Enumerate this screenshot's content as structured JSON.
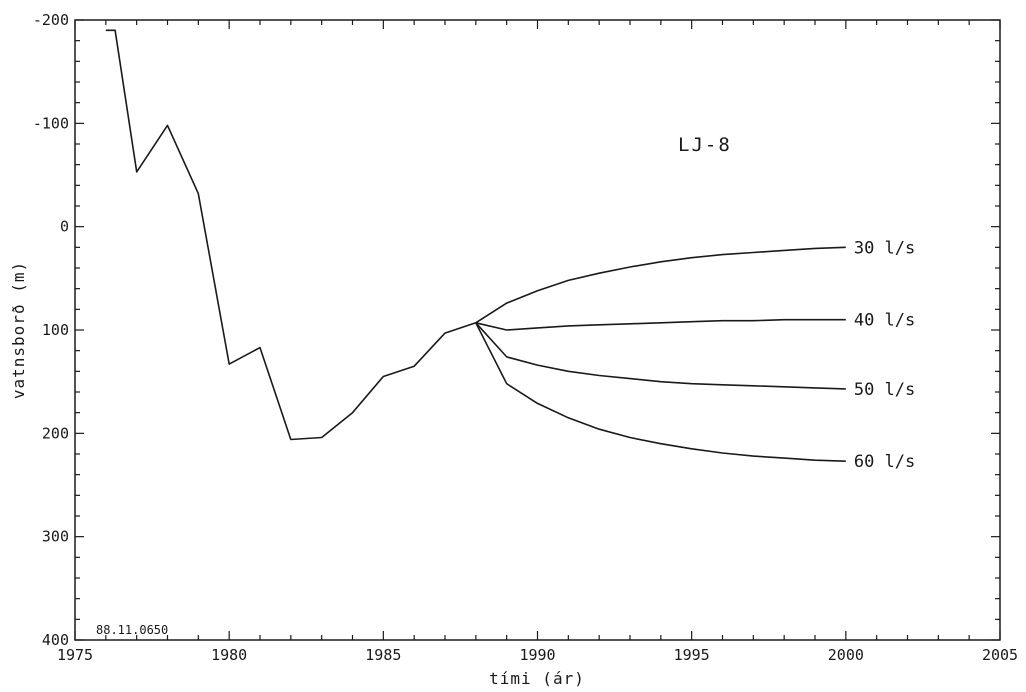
{
  "chart_data": {
    "type": "line",
    "title": "",
    "annotation": "LJ-8",
    "code_label": "88.11.0650",
    "xlabel": "tími (ár)",
    "ylabel": "vatnsborð (m)",
    "xlim": [
      1975,
      2005
    ],
    "ylim": [
      -200,
      400
    ],
    "y_inverted": true,
    "grid": false,
    "x_ticks": [
      1975,
      1980,
      1985,
      1990,
      1995,
      2000,
      2005
    ],
    "y_ticks": [
      -200,
      -100,
      0,
      100,
      200,
      300,
      400
    ],
    "history": {
      "x": [
        1976,
        1976.3,
        1977,
        1978,
        1979,
        1980,
        1981,
        1982,
        1983,
        1984,
        1985,
        1986,
        1987,
        1988
      ],
      "y": [
        -190,
        -190,
        -53,
        -98,
        -32,
        133,
        117,
        206,
        204,
        180,
        145,
        135,
        103,
        93
      ]
    },
    "series": [
      {
        "name": "30 l/s",
        "x": [
          1988,
          1989,
          1990,
          1991,
          1992,
          1993,
          1994,
          1995,
          1996,
          1997,
          1998,
          1999,
          2000
        ],
        "y": [
          93,
          74,
          62,
          52,
          45,
          39,
          34,
          30,
          27,
          25,
          23,
          21,
          20
        ]
      },
      {
        "name": "40 l/s",
        "x": [
          1988,
          1989,
          1990,
          1991,
          1992,
          1993,
          1994,
          1995,
          1996,
          1997,
          1998,
          1999,
          2000
        ],
        "y": [
          93,
          100,
          98,
          96,
          95,
          94,
          93,
          92,
          91,
          91,
          90,
          90,
          90
        ]
      },
      {
        "name": "50 l/s",
        "x": [
          1988,
          1989,
          1990,
          1991,
          1992,
          1993,
          1994,
          1995,
          1996,
          1997,
          1998,
          1999,
          2000
        ],
        "y": [
          93,
          126,
          134,
          140,
          144,
          147,
          150,
          152,
          153,
          154,
          155,
          156,
          157
        ]
      },
      {
        "name": "60 l/s",
        "x": [
          1988,
          1989,
          1990,
          1991,
          1992,
          1993,
          1994,
          1995,
          1996,
          1997,
          1998,
          1999,
          2000
        ],
        "y": [
          93,
          152,
          171,
          185,
          196,
          204,
          210,
          215,
          219,
          222,
          224,
          226,
          227
        ]
      }
    ]
  }
}
